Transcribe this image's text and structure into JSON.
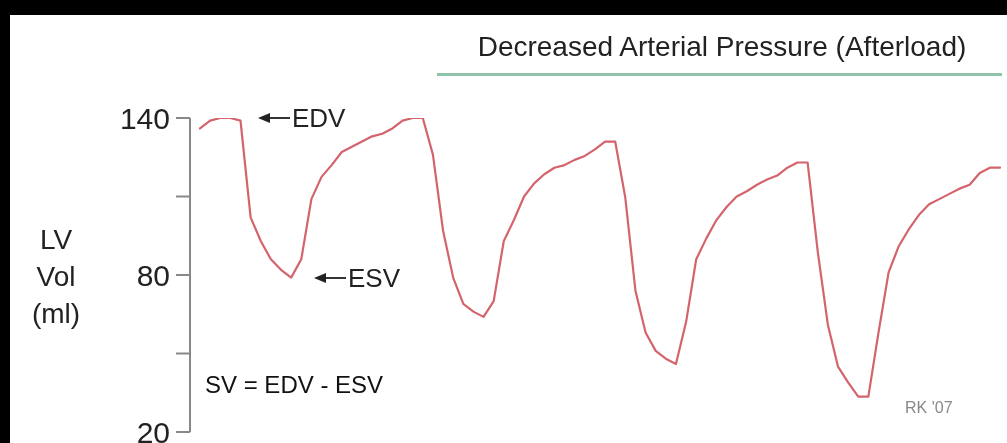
{
  "chart_data": {
    "type": "line",
    "title": "Decreased Arterial Pressure (Afterload)",
    "ylabel": "LV Vol (ml)",
    "categories": [
      null,
      null,
      null,
      null,
      null,
      null,
      null,
      null,
      null,
      null,
      null,
      null,
      null,
      null,
      null,
      null,
      null,
      null,
      null,
      null,
      null,
      null,
      null,
      null,
      null,
      null,
      null,
      null,
      null,
      null,
      null,
      null,
      null,
      null,
      null,
      null,
      null,
      null,
      null,
      null,
      null,
      null,
      null,
      null,
      null,
      null,
      null,
      null,
      null,
      null,
      null,
      null,
      null,
      null,
      null,
      null,
      null,
      null,
      null,
      null,
      null,
      null,
      null,
      null,
      null,
      null,
      null,
      null,
      null,
      null,
      null,
      null,
      null,
      null,
      null,
      null,
      null,
      null,
      null,
      null
    ],
    "series": [
      {
        "color": "#d4646c",
        "values": [
          136,
          139,
          140,
          140,
          139,
          102,
          93,
          86,
          82,
          79,
          86,
          109,
          117.5,
          122,
          127,
          129,
          131,
          133,
          134,
          136,
          139,
          140,
          140,
          126,
          97,
          79,
          69,
          66,
          64,
          70,
          93,
          101,
          110,
          115,
          118.5,
          121,
          122,
          124,
          125.5,
          128,
          131,
          131,
          109.5,
          74,
          58,
          51,
          48,
          46,
          62,
          86,
          94,
          101,
          106,
          110,
          112,
          114.5,
          116.5,
          118,
          121,
          123,
          123,
          89,
          61,
          45,
          39,
          33.5,
          33.5,
          58,
          81,
          91,
          97.5,
          103,
          107,
          109,
          111,
          113,
          114.5,
          119,
          121,
          121
        ]
      }
    ],
    "ylim": [
      20,
      140
    ],
    "yticks": [
      20,
      {
        "value": 50,
        "label": null
      },
      80,
      {
        "value": 110,
        "label": null
      },
      140
    ],
    "tick_labels": "y",
    "marker": "none",
    "line_style": "solid",
    "annotations": [
      "EDV",
      "ESV",
      "SV = EDV - ESV",
      "RK '07"
    ]
  }
}
